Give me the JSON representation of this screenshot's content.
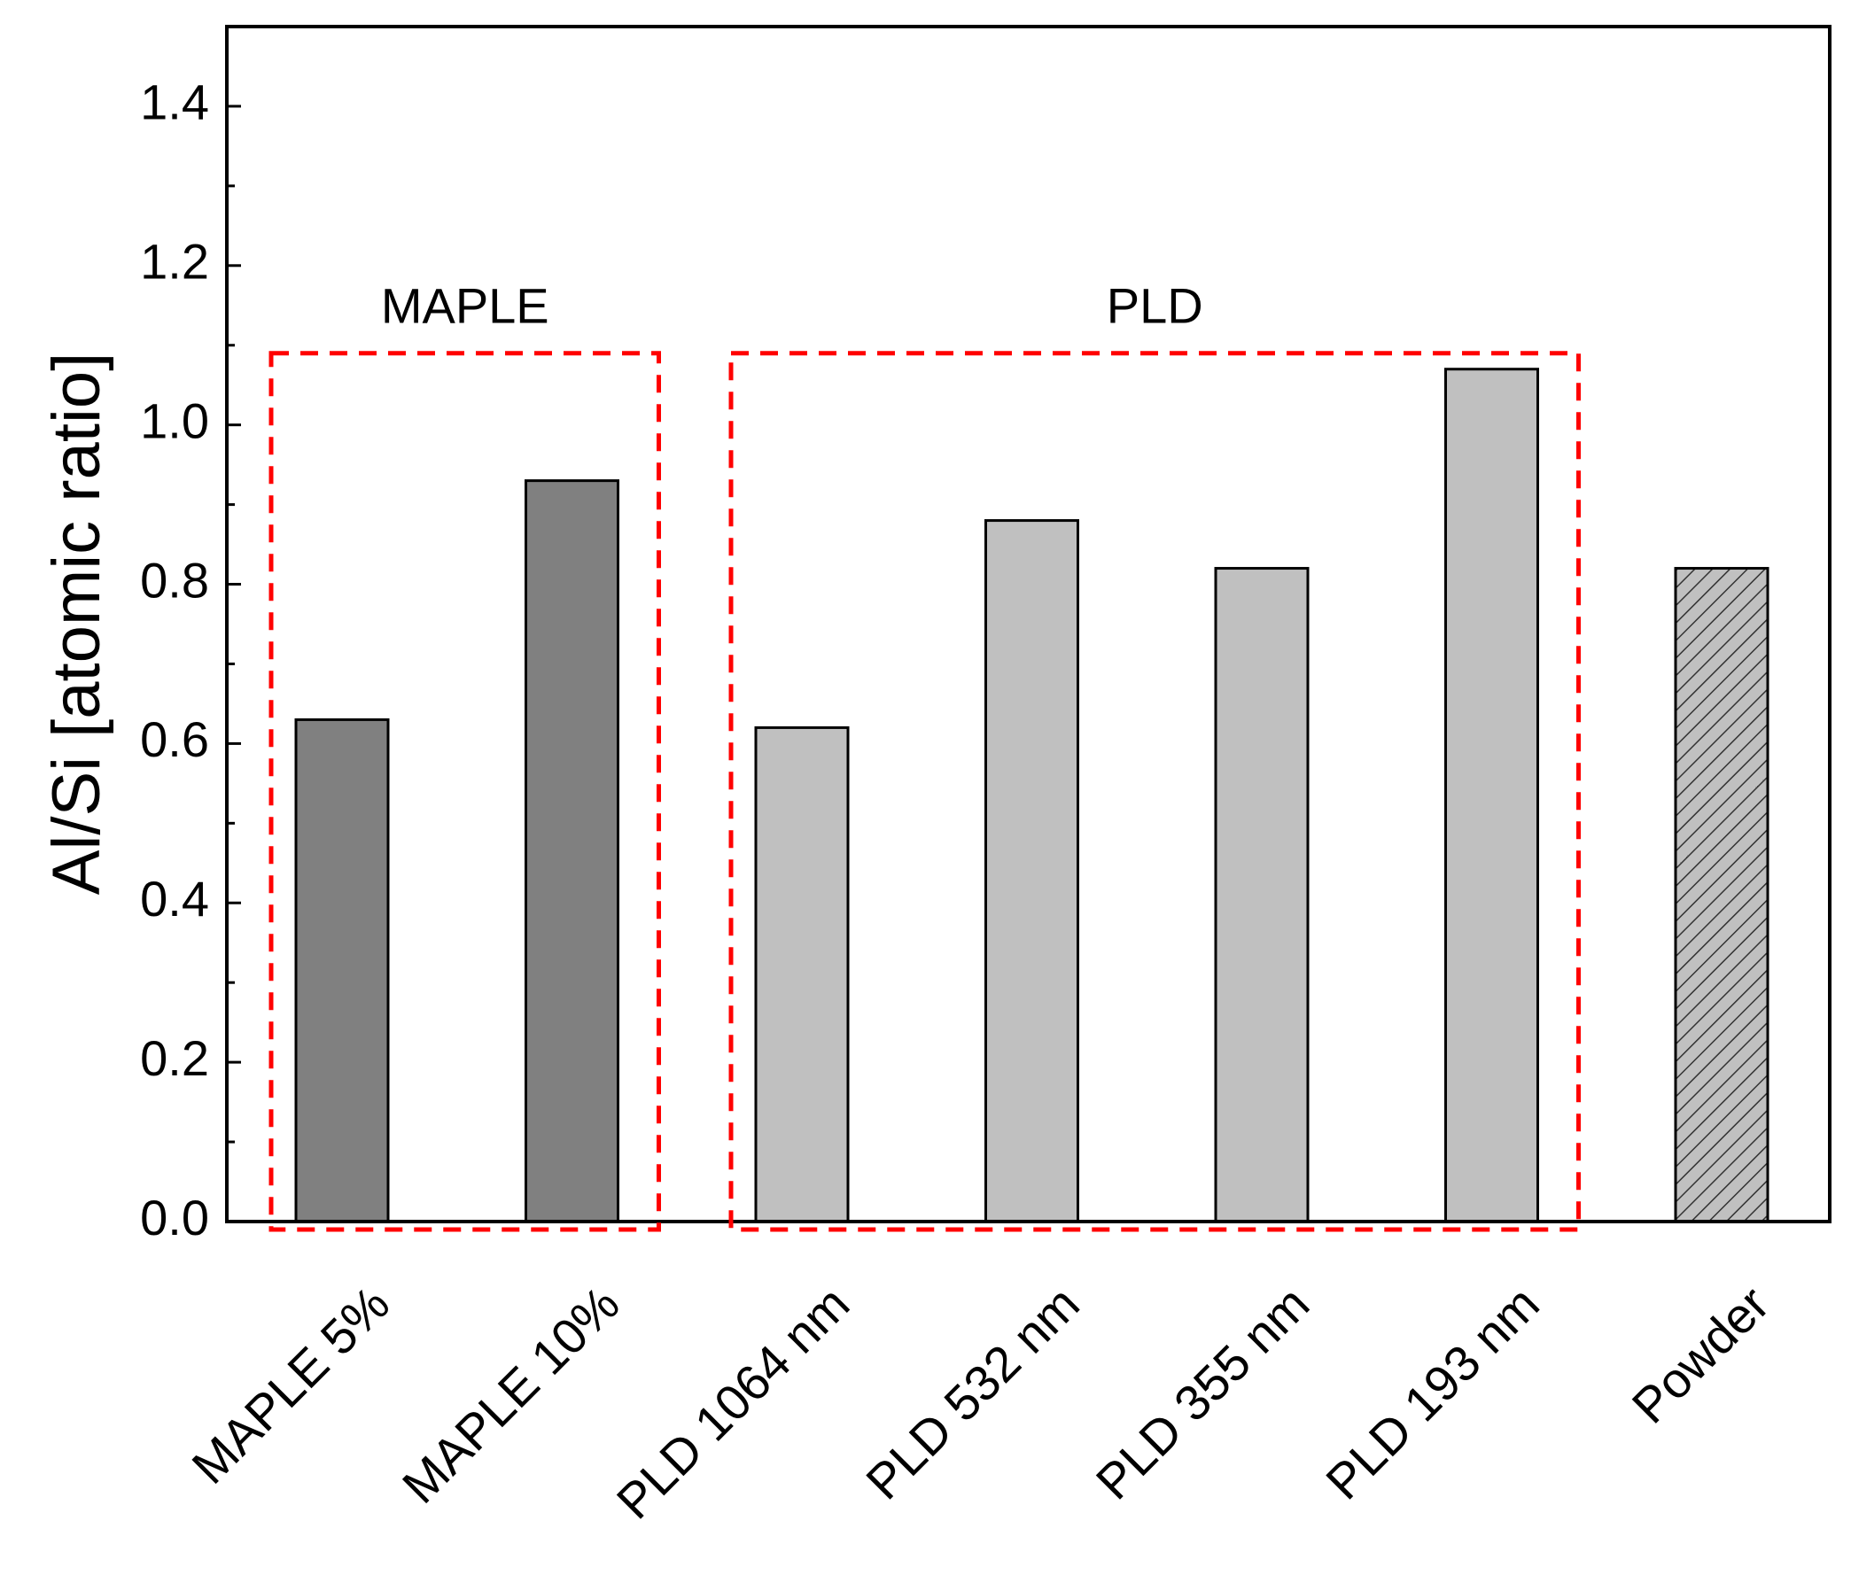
{
  "chart_data": {
    "type": "bar",
    "title": "",
    "xlabel": "",
    "ylabel": "Al/Si [atomic ratio]",
    "ylim": [
      0,
      1.5
    ],
    "yticks": [
      0.0,
      0.2,
      0.4,
      0.6,
      0.8,
      1.0,
      1.2,
      1.4
    ],
    "ytick_labels": [
      "0.0",
      "0.2",
      "0.4",
      "0.6",
      "0.8",
      "1.0",
      "1.2",
      "1.4"
    ],
    "categories": [
      "MAPLE 5%",
      "MAPLE 10%",
      "PLD 1064 nm",
      "PLD 532 nm",
      "PLD 355 nm",
      "PLD 193 nm",
      "Powder"
    ],
    "values": [
      0.63,
      0.93,
      0.62,
      0.88,
      0.82,
      1.07,
      0.82
    ],
    "bar_styles": [
      "dark",
      "dark",
      "light",
      "light",
      "light",
      "light",
      "hatched"
    ],
    "grid": false,
    "annotations": [
      {
        "label": "MAPLE",
        "covers": [
          "MAPLE 5%",
          "MAPLE 10%"
        ],
        "style": "dashed-box"
      },
      {
        "label": "PLD",
        "covers": [
          "PLD 1064 nm",
          "PLD 532 nm",
          "PLD 355 nm",
          "PLD 193 nm"
        ],
        "style": "dashed-box"
      }
    ]
  },
  "colors": {
    "dark_bar": "#808080",
    "light_bar": "#c0c0c0",
    "hatched_bar": "#c0c0c0",
    "hatch_line": "#333333",
    "annotation_box": "#ff0000",
    "axis": "#000000"
  }
}
